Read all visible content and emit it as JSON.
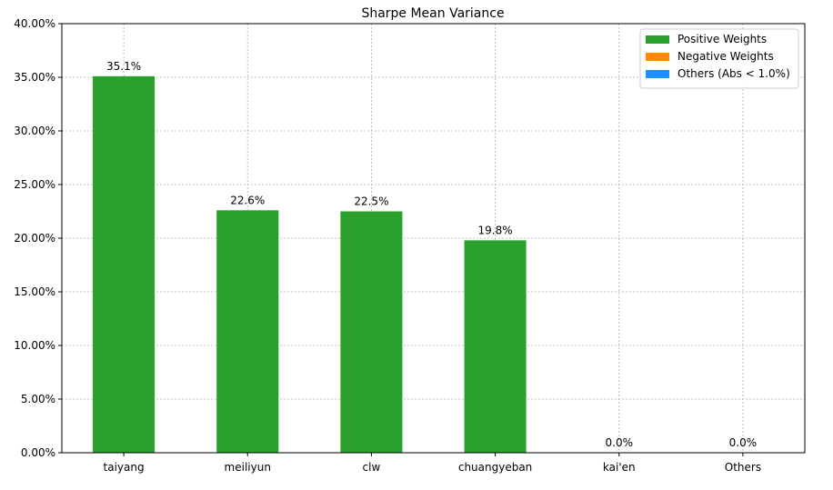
{
  "chart_data": {
    "type": "bar",
    "title": "Sharpe Mean Variance",
    "xlabel": "",
    "ylabel": "",
    "categories": [
      "taiyang",
      "meiliyun",
      "clw",
      "chuangyeban",
      "kai'en",
      "Others"
    ],
    "values": [
      35.1,
      22.6,
      22.5,
      19.8,
      0.0,
      0.0
    ],
    "data_labels": [
      "35.1%",
      "22.6%",
      "22.5%",
      "19.8%",
      "0.0%",
      "0.0%"
    ],
    "bar_series": [
      "positive",
      "positive",
      "positive",
      "positive",
      "positive",
      "others"
    ],
    "ylim": [
      0,
      40
    ],
    "y_ticks": [
      0,
      5,
      10,
      15,
      20,
      25,
      30,
      35,
      40
    ],
    "y_tick_labels": [
      "0.00%",
      "5.00%",
      "10.00%",
      "15.00%",
      "20.00%",
      "25.00%",
      "30.00%",
      "35.00%",
      "40.00%"
    ],
    "grid": true,
    "legend_position": "top-right",
    "legend": [
      {
        "key": "positive",
        "label": "Positive Weights",
        "color": "#2ca02c"
      },
      {
        "key": "negative",
        "label": "Negative Weights",
        "color": "#ff8c00"
      },
      {
        "key": "others",
        "label": "Others (Abs < 1.0%)",
        "color": "#1e90ff"
      }
    ]
  }
}
